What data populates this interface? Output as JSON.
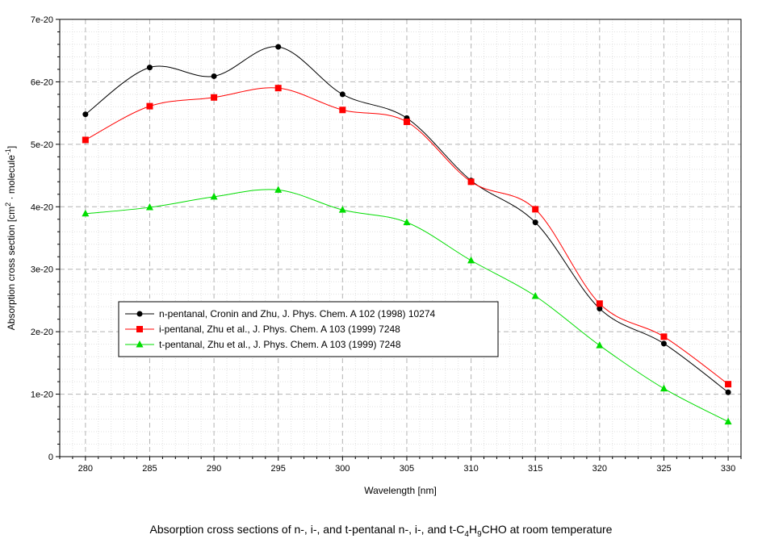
{
  "chart_data": {
    "type": "line",
    "xlabel": "Wavelength [nm]",
    "ylabel_main": "Absorption cross section [cm",
    "ylabel_sup1": "2",
    "ylabel_mid": " · molecule",
    "ylabel_sup2": "-1",
    "ylabel_end": "]",
    "xlim": [
      278,
      331
    ],
    "ylim": [
      0,
      7e-20
    ],
    "x_ticks": [
      280,
      285,
      290,
      295,
      300,
      305,
      310,
      315,
      320,
      325,
      330
    ],
    "y_ticks": [
      0,
      1e-20,
      2e-20,
      3e-20,
      4e-20,
      5e-20,
      6e-20,
      7e-20
    ],
    "y_tick_labels": [
      "0",
      "1e-20",
      "2e-20",
      "3e-20",
      "4e-20",
      "5e-20",
      "6e-20",
      "7e-20"
    ],
    "grid": true,
    "legend_position": "middle-left",
    "x": [
      280,
      285,
      290,
      295,
      300,
      305,
      310,
      315,
      320,
      325,
      330
    ],
    "series": [
      {
        "name": "n-pentanal, Cronin and Zhu, J. Phys. Chem. A 102 (1998) 10274",
        "color": "#000000",
        "marker": "circle",
        "values": [
          5.48e-20,
          6.23e-20,
          6.09e-20,
          6.56e-20,
          5.8e-20,
          5.42e-20,
          4.42e-20,
          3.75e-20,
          2.37e-20,
          1.81e-20,
          1.03e-20
        ]
      },
      {
        "name": "i-pentanal, Zhu et al., J. Phys. Chem. A 103 (1999) 7248",
        "color": "#ff0000",
        "marker": "square",
        "values": [
          5.07e-20,
          5.61e-20,
          5.75e-20,
          5.9e-20,
          5.55e-20,
          5.36e-20,
          4.4e-20,
          3.96e-20,
          2.45e-20,
          1.92e-20,
          1.16e-20
        ]
      },
      {
        "name": "t-pentanal, Zhu et al., J. Phys. Chem. A 103 (1999) 7248",
        "color": "#00dd00",
        "marker": "triangle",
        "values": [
          3.89e-20,
          3.99e-20,
          4.16e-20,
          4.27e-20,
          3.95e-20,
          3.75e-20,
          3.14e-20,
          2.57e-20,
          1.78e-20,
          1.09e-20,
          5.6e-21
        ]
      }
    ]
  },
  "caption": {
    "before": "Absorption cross sections of n-, i-, and t-pentanal n-, i-, and t-C",
    "sub1": "4",
    "mid": "H",
    "sub2": "9",
    "after": "CHO at room temperature"
  }
}
